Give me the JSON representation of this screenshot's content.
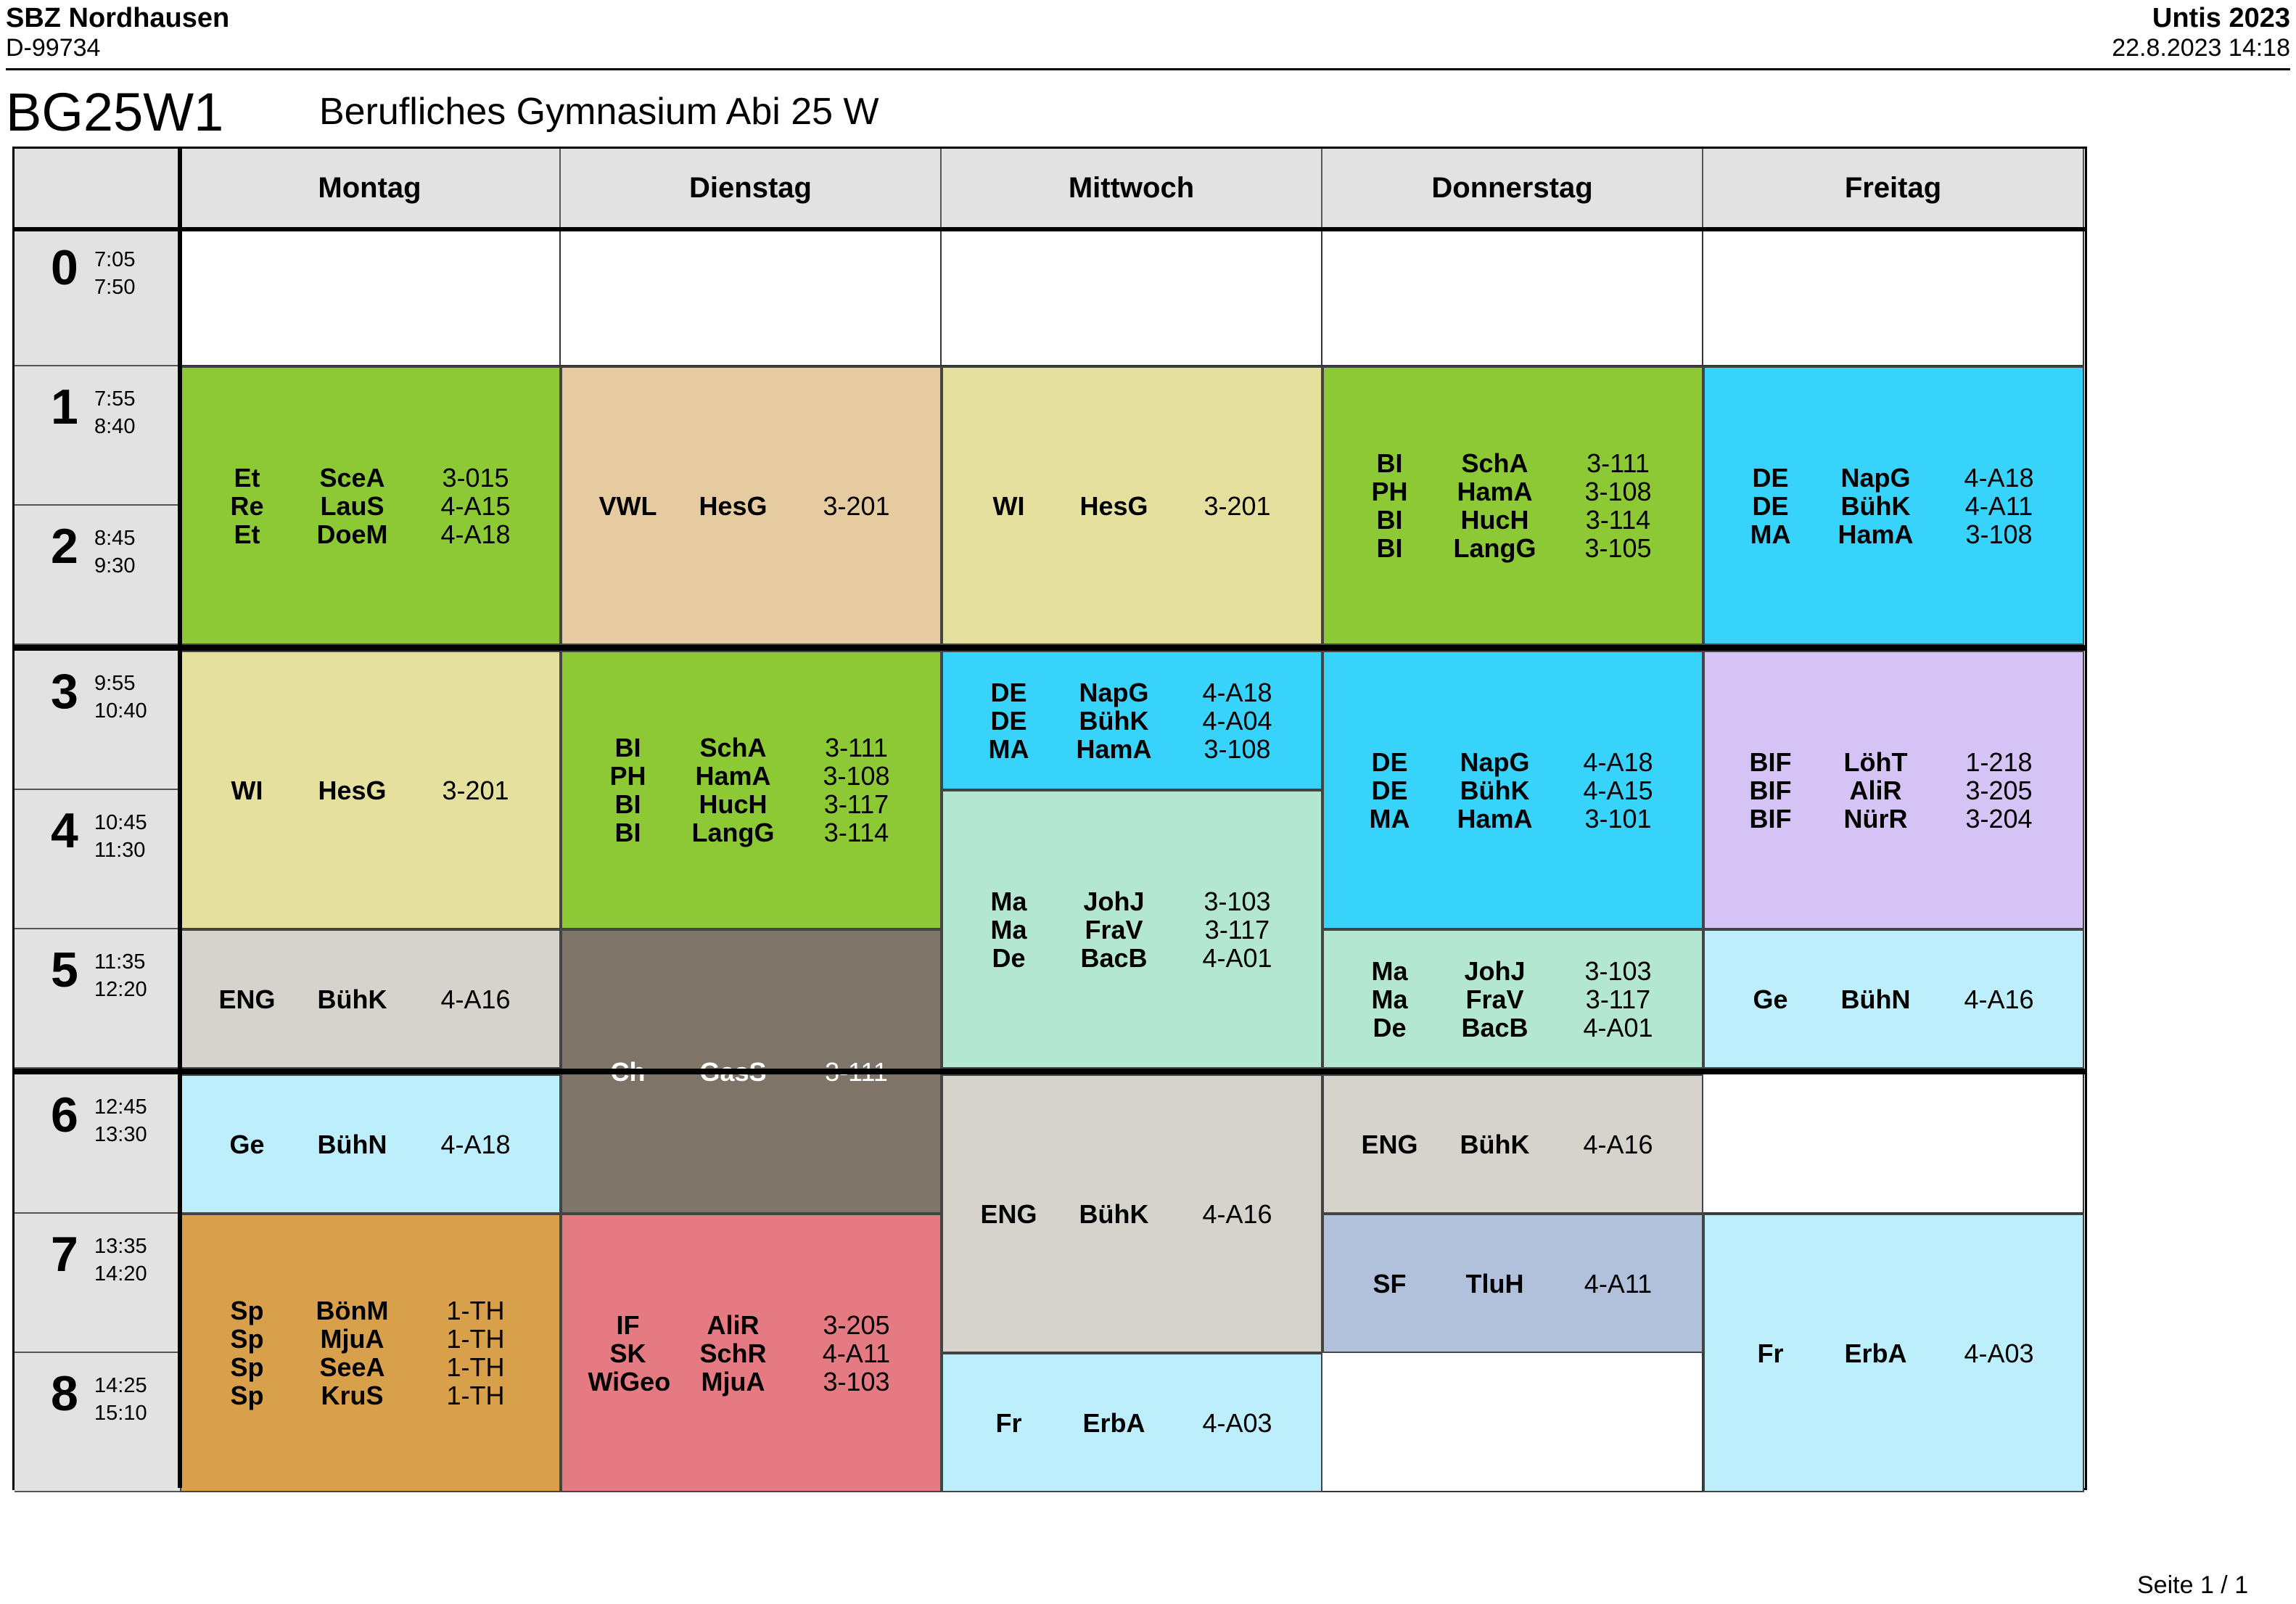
{
  "header": {
    "school": "SBZ Nordhausen",
    "code": "D-99734",
    "program": "Untis 2023",
    "timestamp": "22.8.2023  14:18",
    "class_code": "BG25W1",
    "class_name": "Berufliches Gymnasium Abi 25 W"
  },
  "footer": {
    "page": "Seite 1 / 1"
  },
  "days": [
    "Montag",
    "Dienstag",
    "Mittwoch",
    "Donnerstag",
    "Freitag"
  ],
  "periods": [
    {
      "num": "0",
      "start": "7:05",
      "end": "7:50"
    },
    {
      "num": "1",
      "start": "7:55",
      "end": "8:40"
    },
    {
      "num": "2",
      "start": "8:45",
      "end": "9:30"
    },
    {
      "num": "3",
      "start": "9:55",
      "end": "10:40"
    },
    {
      "num": "4",
      "start": "10:45",
      "end": "11:30"
    },
    {
      "num": "5",
      "start": "11:35",
      "end": "12:20"
    },
    {
      "num": "6",
      "start": "12:45",
      "end": "13:30"
    },
    {
      "num": "7",
      "start": "13:35",
      "end": "14:20"
    },
    {
      "num": "8",
      "start": "14:25",
      "end": "15:10"
    }
  ],
  "lessons": [
    {
      "day": 0,
      "start": 1,
      "span": 2,
      "color": "#8dc934",
      "rows": [
        [
          "Et",
          "SceA",
          "3-015"
        ],
        [
          "Re",
          "LauS",
          "4-A15"
        ],
        [
          "Et",
          "DoeM",
          "4-A18"
        ]
      ]
    },
    {
      "day": 0,
      "start": 3,
      "span": 2,
      "color": "#e6e09f",
      "rows": [
        [
          "WI",
          "HesG",
          "3-201"
        ]
      ]
    },
    {
      "day": 0,
      "start": 5,
      "span": 1,
      "color": "#d6d2cc",
      "rows": [
        [
          "ENG",
          "BühK",
          "4-A16"
        ]
      ]
    },
    {
      "day": 0,
      "start": 6,
      "span": 1,
      "color": "#bdeefb",
      "rows": [
        [
          "Ge",
          "BühN",
          "4-A18"
        ]
      ]
    },
    {
      "day": 0,
      "start": 7,
      "span": 2,
      "color": "#d9a04b",
      "rows": [
        [
          "Sp",
          "BönM",
          "1-TH"
        ],
        [
          "Sp",
          "MjuA",
          "1-TH"
        ],
        [
          "Sp",
          "SeeA",
          "1-TH"
        ],
        [
          "Sp",
          "KruS",
          "1-TH"
        ]
      ]
    },
    {
      "day": 1,
      "start": 1,
      "span": 2,
      "color": "#e6cba0",
      "rows": [
        [
          "VWL",
          "HesG",
          "3-201"
        ]
      ]
    },
    {
      "day": 1,
      "start": 3,
      "span": 2,
      "color": "#8dc934",
      "rows": [
        [
          "BI",
          "SchA",
          "3-111"
        ],
        [
          "PH",
          "HamA",
          "3-108"
        ],
        [
          "BI",
          "HucH",
          "3-117"
        ],
        [
          "BI",
          "LangG",
          "3-114"
        ]
      ]
    },
    {
      "day": 1,
      "start": 5,
      "span": 2,
      "color": "#7f7468",
      "text": "#ffffff",
      "rows": [
        [
          "Ch",
          "GasS",
          "3-111"
        ]
      ]
    },
    {
      "day": 1,
      "start": 7,
      "span": 2,
      "color": "#e57a82",
      "rows": [
        [
          "IF",
          "AliR",
          "3-205"
        ],
        [
          "SK",
          "SchR",
          "4-A11"
        ],
        [
          "WiGeo",
          "MjuA",
          "3-103"
        ]
      ]
    },
    {
      "day": 2,
      "start": 1,
      "span": 2,
      "color": "#e6e09f",
      "rows": [
        [
          "WI",
          "HesG",
          "3-201"
        ]
      ]
    },
    {
      "day": 2,
      "start": 3,
      "span": 1,
      "color": "#38d3fb",
      "rows": [
        [
          "DE",
          "NapG",
          "4-A18"
        ],
        [
          "DE",
          "BühK",
          "4-A04"
        ],
        [
          "MA",
          "HamA",
          "3-108"
        ]
      ]
    },
    {
      "day": 2,
      "start": 4,
      "span": 2,
      "color": "#b3e7d2",
      "rows": [
        [
          "Ma",
          "JohJ",
          "3-103"
        ],
        [
          "Ma",
          "FraV",
          "3-117"
        ],
        [
          "De",
          "BacB",
          "4-A01"
        ]
      ]
    },
    {
      "day": 2,
      "start": 6,
      "span": 2,
      "color": "#d6d2cc",
      "rows": [
        [
          "ENG",
          "BühK",
          "4-A16"
        ]
      ]
    },
    {
      "day": 2,
      "start": 8,
      "span": 1,
      "color": "#bdeefb",
      "rows": [
        [
          "Fr",
          "ErbA",
          "4-A03"
        ]
      ]
    },
    {
      "day": 3,
      "start": 1,
      "span": 2,
      "color": "#8dc934",
      "rows": [
        [
          "BI",
          "SchA",
          "3-111"
        ],
        [
          "PH",
          "HamA",
          "3-108"
        ],
        [
          "BI",
          "HucH",
          "3-114"
        ],
        [
          "BI",
          "LangG",
          "3-105"
        ]
      ]
    },
    {
      "day": 3,
      "start": 3,
      "span": 2,
      "color": "#38d3fb",
      "rows": [
        [
          "DE",
          "NapG",
          "4-A18"
        ],
        [
          "DE",
          "BühK",
          "4-A15"
        ],
        [
          "MA",
          "HamA",
          "3-101"
        ]
      ]
    },
    {
      "day": 3,
      "start": 5,
      "span": 1,
      "color": "#b3e7d2",
      "rows": [
        [
          "Ma",
          "JohJ",
          "3-103"
        ],
        [
          "Ma",
          "FraV",
          "3-117"
        ],
        [
          "De",
          "BacB",
          "4-A01"
        ]
      ]
    },
    {
      "day": 3,
      "start": 6,
      "span": 1,
      "color": "#d6d2cc",
      "rows": [
        [
          "ENG",
          "BühK",
          "4-A16"
        ]
      ]
    },
    {
      "day": 3,
      "start": 7,
      "span": 1,
      "color": "#b1c1dc",
      "rows": [
        [
          "SF",
          "TluH",
          "4-A11"
        ]
      ]
    },
    {
      "day": 4,
      "start": 1,
      "span": 2,
      "color": "#38d3fb",
      "rows": [
        [
          "DE",
          "NapG",
          "4-A18"
        ],
        [
          "DE",
          "BühK",
          "4-A11"
        ],
        [
          "MA",
          "HamA",
          "3-108"
        ]
      ]
    },
    {
      "day": 4,
      "start": 3,
      "span": 2,
      "color": "#d6c3f5",
      "rows": [
        [
          "BIF",
          "LöhT",
          "1-218"
        ],
        [
          "BIF",
          "AliR",
          "3-205"
        ],
        [
          "BIF",
          "NürR",
          "3-204"
        ]
      ]
    },
    {
      "day": 4,
      "start": 5,
      "span": 1,
      "color": "#bdeefb",
      "rows": [
        [
          "Ge",
          "BühN",
          "4-A16"
        ]
      ]
    },
    {
      "day": 4,
      "start": 7,
      "span": 2,
      "color": "#bdeefb",
      "rows": [
        [
          "Fr",
          "ErbA",
          "4-A03"
        ]
      ]
    }
  ]
}
